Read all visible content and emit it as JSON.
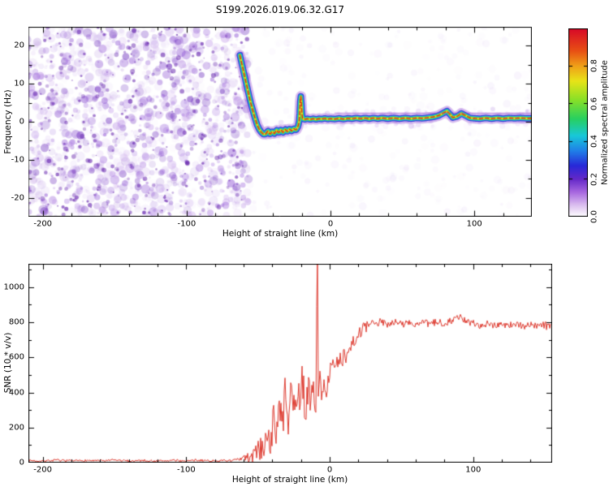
{
  "title": "S199.2026.019.06.32.G17",
  "chart_data": [
    {
      "type": "heatmap",
      "panel": "spectrogram",
      "xlabel": "Height of straight line (km)",
      "ylabel": "Frequency (Hz)",
      "xlim": [
        -210,
        140
      ],
      "ylim": [
        -25,
        25
      ],
      "xtick_values": [
        -200,
        -100,
        0,
        100
      ],
      "xtick_labels": [
        "-200",
        "-100",
        "0",
        "100"
      ],
      "ytick_values": [
        20,
        10,
        0,
        -10,
        -20
      ],
      "ytick_labels": [
        "20",
        "10",
        "0",
        "-10",
        "-20"
      ],
      "colorbar": {
        "label": "Normalized spectral amplitude",
        "lim": [
          0,
          1
        ],
        "tick_values": [
          0,
          0.2,
          0.4,
          0.6,
          0.8
        ],
        "tick_labels": [
          "0.0",
          "0.2",
          "0.4",
          "0.6",
          "0.8"
        ],
        "colormap": [
          {
            "v": 0.0,
            "c": "#ffffff"
          },
          {
            "v": 0.06,
            "c": "#dcc0f0"
          },
          {
            "v": 0.13,
            "c": "#a868e0"
          },
          {
            "v": 0.2,
            "c": "#6428c8"
          },
          {
            "v": 0.27,
            "c": "#2828d8"
          },
          {
            "v": 0.35,
            "c": "#2080e8"
          },
          {
            "v": 0.43,
            "c": "#18c8d8"
          },
          {
            "v": 0.52,
            "c": "#28d060"
          },
          {
            "v": 0.62,
            "c": "#88e028"
          },
          {
            "v": 0.72,
            "c": "#e8e418"
          },
          {
            "v": 0.8,
            "c": "#f0a018"
          },
          {
            "v": 0.88,
            "c": "#e85014"
          },
          {
            "v": 1.0,
            "c": "#d80828"
          }
        ]
      },
      "noise": {
        "seed": 42,
        "region_x_end": -57,
        "colors": [
          "#e2d0f4",
          "#c9a6ec",
          "#a878e0",
          "#8a4ed2",
          "#6b2cbd"
        ],
        "dark_color": "#5c17a8",
        "counts": {
          "main": 1500,
          "dark": 280,
          "sparse": 300,
          "fringe": 220
        }
      },
      "signal_trace": [
        [
          -63,
          17.5
        ],
        [
          -61.5,
          15
        ],
        [
          -60,
          12.5
        ],
        [
          -58.5,
          10
        ],
        [
          -57,
          7.5
        ],
        [
          -55.5,
          5
        ],
        [
          -54,
          3
        ],
        [
          -52.5,
          1
        ],
        [
          -51,
          -0.8
        ],
        [
          -49.5,
          -2
        ],
        [
          -48,
          -2.8
        ],
        [
          -46.5,
          -3.3
        ],
        [
          -45,
          -3.2
        ],
        [
          -43.5,
          -2.4
        ],
        [
          -42,
          -3.3
        ],
        [
          -40.5,
          -2.6
        ],
        [
          -39,
          -3.1
        ],
        [
          -37.5,
          -2.2
        ],
        [
          -36,
          -2.9
        ],
        [
          -34.5,
          -2.1
        ],
        [
          -33,
          -2.8
        ],
        [
          -31.5,
          -2.0
        ],
        [
          -30,
          -2.6
        ],
        [
          -28.5,
          -1.9
        ],
        [
          -27,
          -2.4
        ],
        [
          -25.5,
          -1.8
        ],
        [
          -24,
          -2.2
        ],
        [
          -22.5,
          -1.2
        ],
        [
          -21.6,
          0.5
        ],
        [
          -21.2,
          4
        ],
        [
          -20.8,
          6.8
        ],
        [
          -20.4,
          6.5
        ],
        [
          -20.0,
          3
        ],
        [
          -19.6,
          0.9
        ],
        [
          -18,
          0.6
        ],
        [
          -16,
          0.8
        ],
        [
          -14,
          0.6
        ],
        [
          -12,
          0.8
        ],
        [
          -10,
          0.6
        ],
        [
          -8,
          0.8
        ],
        [
          -6,
          0.7
        ],
        [
          -4,
          0.9
        ],
        [
          -2,
          0.7
        ],
        [
          0,
          0.8
        ],
        [
          3,
          0.7
        ],
        [
          6,
          0.9
        ],
        [
          9,
          0.7
        ],
        [
          12,
          0.9
        ],
        [
          15,
          0.8
        ],
        [
          18,
          1.0
        ],
        [
          21,
          0.8
        ],
        [
          24,
          1.0
        ],
        [
          27,
          0.8
        ],
        [
          30,
          1.0
        ],
        [
          33,
          0.8
        ],
        [
          36,
          1.0
        ],
        [
          40,
          0.8
        ],
        [
          44,
          1.0
        ],
        [
          48,
          0.8
        ],
        [
          52,
          1.0
        ],
        [
          56,
          0.8
        ],
        [
          60,
          1.0
        ],
        [
          64,
          0.9
        ],
        [
          68,
          1.1
        ],
        [
          72,
          1.3
        ],
        [
          75,
          1.6
        ],
        [
          78,
          2.2
        ],
        [
          81,
          2.8
        ],
        [
          83,
          2.0
        ],
        [
          85,
          1.1
        ],
        [
          88,
          1.4
        ],
        [
          91,
          2.2
        ],
        [
          94,
          1.6
        ],
        [
          97,
          1.0
        ],
        [
          100,
          0.9
        ],
        [
          104,
          0.8
        ],
        [
          108,
          1.0
        ],
        [
          112,
          0.8
        ],
        [
          116,
          1.0
        ],
        [
          120,
          0.8
        ],
        [
          124,
          1.0
        ],
        [
          128,
          0.9
        ],
        [
          132,
          1.0
        ],
        [
          136,
          0.9
        ],
        [
          140,
          0.9
        ]
      ],
      "trace_layers": [
        {
          "color": "#b27ae0",
          "width": 13,
          "alpha": 0.5
        },
        {
          "color": "#3535d6",
          "width": 8,
          "alpha": 0.95
        },
        {
          "color": "#18c0ec",
          "width": 5.5,
          "alpha": 1
        },
        {
          "color": "#2cd052",
          "width": 3.8,
          "alpha": 1
        },
        {
          "color": "#e6e81e",
          "width": 2.3,
          "alpha": 1
        },
        {
          "color": "#e02418",
          "width": 1.4,
          "alpha": 1,
          "dash": [
            4.5,
            3
          ]
        }
      ],
      "faint_line": {
        "f": 2.3,
        "x_start": 3,
        "x_end": 140,
        "color": "#9040c8",
        "alpha": 0.5,
        "width": 1
      }
    },
    {
      "type": "line",
      "panel": "snr",
      "xlabel": "Height of straight line (km)",
      "ylabel": "SNR (10 * v/v)",
      "xlim": [
        -210,
        155
      ],
      "ylim": [
        0,
        1133
      ],
      "xtick_values": [
        -200,
        -100,
        0,
        100
      ],
      "xtick_labels": [
        "-200",
        "-100",
        "0",
        "100"
      ],
      "ytick_values": [
        0,
        200,
        400,
        600,
        800,
        1000
      ],
      "ytick_labels": [
        "0",
        "200",
        "400",
        "600",
        "800",
        "1000"
      ],
      "color": "#de3b30",
      "seed": 7,
      "points": [
        [
          -210,
          12
        ],
        [
          -200,
          10
        ],
        [
          -190,
          14
        ],
        [
          -180,
          9
        ],
        [
          -170,
          13
        ],
        [
          -160,
          10
        ],
        [
          -150,
          14
        ],
        [
          -140,
          10
        ],
        [
          -130,
          13
        ],
        [
          -120,
          9
        ],
        [
          -110,
          13
        ],
        [
          -100,
          10
        ],
        [
          -90,
          13
        ],
        [
          -80,
          10
        ],
        [
          -72,
          12
        ],
        [
          -66,
          14
        ],
        [
          -62,
          18
        ],
        [
          -59,
          30
        ],
        [
          -57,
          22
        ],
        [
          -55,
          45
        ],
        [
          -53,
          35
        ],
        [
          -51,
          70
        ],
        [
          -49,
          55
        ],
        [
          -47,
          110
        ],
        [
          -45,
          80
        ],
        [
          -43,
          180
        ],
        [
          -41,
          120
        ],
        [
          -39,
          260
        ],
        [
          -37,
          160
        ],
        [
          -35,
          330
        ],
        [
          -33,
          210
        ],
        [
          -31,
          400
        ],
        [
          -29,
          240
        ],
        [
          -27,
          360
        ],
        [
          -25,
          290
        ],
        [
          -23,
          440
        ],
        [
          -21,
          330
        ],
        [
          -19,
          480
        ],
        [
          -17,
          300
        ],
        [
          -15,
          420
        ],
        [
          -13,
          360
        ],
        [
          -11,
          430
        ],
        [
          -9.6,
          280
        ],
        [
          -9,
          1120
        ],
        [
          -8.5,
          1090
        ],
        [
          -8,
          330
        ],
        [
          -7,
          480
        ],
        [
          -6,
          400
        ],
        [
          -5,
          470
        ],
        [
          -4,
          410
        ],
        [
          -3,
          460
        ],
        [
          -2,
          430
        ],
        [
          -1,
          480
        ],
        [
          0,
          500
        ],
        [
          2,
          540
        ],
        [
          4,
          510
        ],
        [
          6,
          590
        ],
        [
          8,
          560
        ],
        [
          10,
          640
        ],
        [
          12,
          610
        ],
        [
          14,
          670
        ],
        [
          16,
          690
        ],
        [
          18,
          710
        ],
        [
          20,
          730
        ],
        [
          23,
          760
        ],
        [
          26,
          775
        ],
        [
          30,
          790
        ],
        [
          35,
          800
        ],
        [
          40,
          792
        ],
        [
          45,
          803
        ],
        [
          50,
          788
        ],
        [
          55,
          798
        ],
        [
          60,
          786
        ],
        [
          65,
          794
        ],
        [
          70,
          790
        ],
        [
          75,
          800
        ],
        [
          80,
          796
        ],
        [
          85,
          812
        ],
        [
          90,
          828
        ],
        [
          93,
          815
        ],
        [
          96,
          800
        ],
        [
          100,
          792
        ],
        [
          105,
          786
        ],
        [
          110,
          794
        ],
        [
          115,
          784
        ],
        [
          120,
          790
        ],
        [
          125,
          783
        ],
        [
          130,
          789
        ],
        [
          135,
          779
        ],
        [
          140,
          786
        ],
        [
          145,
          778
        ],
        [
          150,
          784
        ],
        [
          155,
          780
        ]
      ],
      "noise_amp": [
        [
          -210,
          6
        ],
        [
          -70,
          6
        ],
        [
          -62,
          10
        ],
        [
          -55,
          45
        ],
        [
          -45,
          85
        ],
        [
          -35,
          105
        ],
        [
          -25,
          110
        ],
        [
          -15,
          95
        ],
        [
          -10,
          80
        ],
        [
          -5,
          75
        ],
        [
          0,
          70
        ],
        [
          5,
          65
        ],
        [
          10,
          58
        ],
        [
          15,
          50
        ],
        [
          20,
          42
        ],
        [
          25,
          32
        ],
        [
          30,
          24
        ],
        [
          40,
          22
        ],
        [
          155,
          20
        ]
      ]
    }
  ]
}
